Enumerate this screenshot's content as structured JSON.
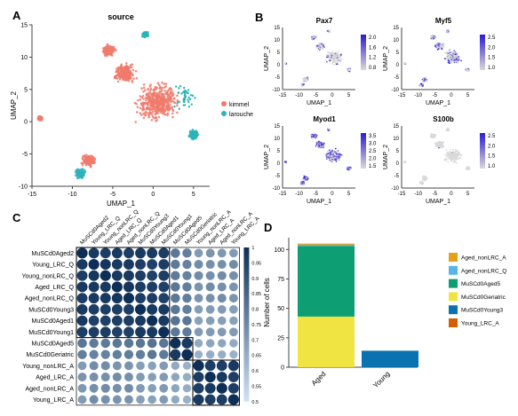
{
  "chart_data": [
    {
      "panel": "A",
      "type": "scatter",
      "title": "source",
      "xlabel": "UMAP_1",
      "ylabel": "UMAP_2",
      "xlim": [
        -15,
        7
      ],
      "ylim": [
        -10,
        15
      ],
      "xticks": [
        "-15",
        "-10",
        "-5",
        "0",
        "5"
      ],
      "yticks": [
        "-10",
        "-5",
        "0",
        "5",
        "10",
        "15"
      ],
      "legend": {
        "placement": "right",
        "entries": [
          {
            "name": "kimmel",
            "color": "#f07a6c"
          },
          {
            "name": "larouche",
            "color": "#2bb3b8"
          }
        ]
      },
      "clusters": [
        {
          "name": "kimmel",
          "x": 0.5,
          "y": 3.0,
          "spread": 3.2
        },
        {
          "name": "kimmel",
          "x": -3.5,
          "y": 7.5,
          "spread": 1.6
        },
        {
          "name": "kimmel",
          "x": -5.5,
          "y": 11.0,
          "spread": 1.0
        },
        {
          "name": "kimmel",
          "x": -8.0,
          "y": -6.0,
          "spread": 1.0
        },
        {
          "name": "kimmel",
          "x": -14.0,
          "y": 0.5,
          "spread": 0.4
        },
        {
          "name": "larouche",
          "x": -9.0,
          "y": -8.0,
          "spread": 0.8
        },
        {
          "name": "larouche",
          "x": -1.0,
          "y": 13.5,
          "spread": 0.5
        },
        {
          "name": "larouche",
          "x": 5.0,
          "y": -2.0,
          "spread": 0.8
        }
      ]
    },
    {
      "panel": "B",
      "type": "scatter",
      "xlabel": "UMAP_1",
      "ylabel": "UMAP_2",
      "xticks": [
        "-15",
        "-10",
        "-5",
        "0",
        "5"
      ],
      "yticks": [
        "-10",
        "-5",
        "0",
        "5",
        "10",
        "15"
      ],
      "low_color": "#d9d9d9",
      "high_color": "#2a1bd6",
      "subplots": [
        {
          "title": "Pax7",
          "scale": [
            "2.0",
            "1.6",
            "1.2",
            "0.8"
          ],
          "expression": 0.2
        },
        {
          "title": "Myf5",
          "scale": [
            "2.5",
            "2.0",
            "1.5",
            "1.0"
          ],
          "expression": 0.35
        },
        {
          "title": "Myod1",
          "scale": [
            "3.5",
            "3.0",
            "2.5",
            "2.0",
            "1.5"
          ],
          "expression": 0.7
        },
        {
          "title": "S100b",
          "scale": [
            "2.5",
            "2.0",
            "1.5",
            "1.0"
          ],
          "expression": 0.02
        }
      ]
    },
    {
      "panel": "C",
      "type": "heatmap",
      "labels": [
        "MuSCd0Aged2",
        "Young_LRC_Q",
        "Young_nonLRC_Q",
        "Aged_LRC_Q",
        "Aged_nonLRC_Q",
        "MuSCd0Young3",
        "MuSCd0Aged1",
        "MuSCd0Young1",
        "MuSCd0Aged5",
        "MuSCd0Geriatric",
        "Young_nonLRC_A",
        "Aged_LRC_A",
        "Aged_nonLRC_A",
        "Young_LRC_A"
      ],
      "groups": [
        [
          0,
          7
        ],
        [
          8,
          9
        ],
        [
          10,
          13
        ]
      ],
      "scale_ticks": [
        "1",
        "0.95",
        "0.9",
        "0.85",
        "0.8",
        "0.75",
        "0.7",
        "0.65",
        "0.6",
        "0.55",
        "0.5"
      ],
      "range": [
        0.5,
        1.0
      ],
      "color_low": "#cfe3f5",
      "color_high": "#0d2f57",
      "matrix": [
        [
          1.0,
          0.97,
          0.96,
          0.97,
          0.96,
          0.97,
          0.97,
          0.96,
          0.8,
          0.78,
          0.7,
          0.72,
          0.71,
          0.7
        ],
        [
          0.97,
          1.0,
          0.98,
          0.97,
          0.97,
          0.96,
          0.95,
          0.96,
          0.79,
          0.77,
          0.74,
          0.73,
          0.73,
          0.74
        ],
        [
          0.96,
          0.98,
          1.0,
          0.97,
          0.97,
          0.96,
          0.95,
          0.96,
          0.79,
          0.77,
          0.74,
          0.73,
          0.74,
          0.73
        ],
        [
          0.97,
          0.97,
          0.97,
          1.0,
          0.98,
          0.96,
          0.96,
          0.95,
          0.8,
          0.78,
          0.72,
          0.74,
          0.73,
          0.72
        ],
        [
          0.96,
          0.97,
          0.97,
          0.98,
          1.0,
          0.96,
          0.96,
          0.95,
          0.8,
          0.78,
          0.72,
          0.73,
          0.74,
          0.72
        ],
        [
          0.97,
          0.96,
          0.96,
          0.96,
          0.96,
          1.0,
          0.97,
          0.97,
          0.8,
          0.78,
          0.69,
          0.7,
          0.7,
          0.69
        ],
        [
          0.97,
          0.95,
          0.95,
          0.96,
          0.96,
          0.97,
          1.0,
          0.97,
          0.81,
          0.8,
          0.68,
          0.69,
          0.69,
          0.68
        ],
        [
          0.96,
          0.96,
          0.96,
          0.95,
          0.95,
          0.97,
          0.97,
          1.0,
          0.8,
          0.79,
          0.7,
          0.7,
          0.7,
          0.7
        ],
        [
          0.8,
          0.79,
          0.79,
          0.8,
          0.8,
          0.8,
          0.81,
          0.8,
          1.0,
          0.97,
          0.66,
          0.67,
          0.67,
          0.66
        ],
        [
          0.78,
          0.77,
          0.77,
          0.78,
          0.78,
          0.78,
          0.8,
          0.79,
          0.97,
          1.0,
          0.64,
          0.65,
          0.65,
          0.64
        ],
        [
          0.7,
          0.74,
          0.74,
          0.72,
          0.72,
          0.69,
          0.68,
          0.7,
          0.66,
          0.64,
          1.0,
          0.96,
          0.96,
          0.97
        ],
        [
          0.72,
          0.73,
          0.73,
          0.74,
          0.73,
          0.7,
          0.69,
          0.7,
          0.67,
          0.65,
          0.96,
          1.0,
          0.97,
          0.96
        ],
        [
          0.71,
          0.73,
          0.74,
          0.73,
          0.74,
          0.7,
          0.69,
          0.7,
          0.67,
          0.65,
          0.96,
          0.97,
          1.0,
          0.96
        ],
        [
          0.7,
          0.74,
          0.73,
          0.72,
          0.72,
          0.69,
          0.68,
          0.7,
          0.66,
          0.64,
          0.97,
          0.96,
          0.96,
          1.0
        ]
      ]
    },
    {
      "panel": "D",
      "type": "bar",
      "stacked": true,
      "categories": [
        "Aged",
        "Young"
      ],
      "ylabel": "Number of cells",
      "ylim": [
        0,
        110
      ],
      "yticks": [
        "0",
        "25",
        "50",
        "75",
        "100"
      ],
      "series": [
        {
          "name": "Aged_nonLRC_A",
          "color": "#e6a11a",
          "values": [
            1,
            0
          ]
        },
        {
          "name": "Aged_nonLRC_Q",
          "color": "#58b6e6",
          "values": [
            1,
            0
          ]
        },
        {
          "name": "MuSCd0Aged5",
          "color": "#0e9e74",
          "values": [
            60,
            0
          ]
        },
        {
          "name": "MuSCd0Geriatric",
          "color": "#f0e442",
          "values": [
            43,
            0
          ]
        },
        {
          "name": "MuSCd0Young3",
          "color": "#0b72b2",
          "values": [
            0,
            14
          ]
        },
        {
          "name": "Young_LRC_A",
          "color": "#d55e00",
          "values": [
            0,
            0
          ]
        }
      ],
      "stack_order": [
        "MuSCd0Geriatric",
        "MuSCd0Young3",
        "Young_LRC_A",
        "MuSCd0Aged5",
        "Aged_nonLRC_Q",
        "Aged_nonLRC_A"
      ],
      "legend_placement": "right"
    }
  ],
  "panel_letters": {
    "a": "A",
    "b": "B",
    "c": "C",
    "d": "D"
  },
  "colors": {
    "axis": "#444444",
    "text": "#222222",
    "grid_box": "#222222"
  }
}
